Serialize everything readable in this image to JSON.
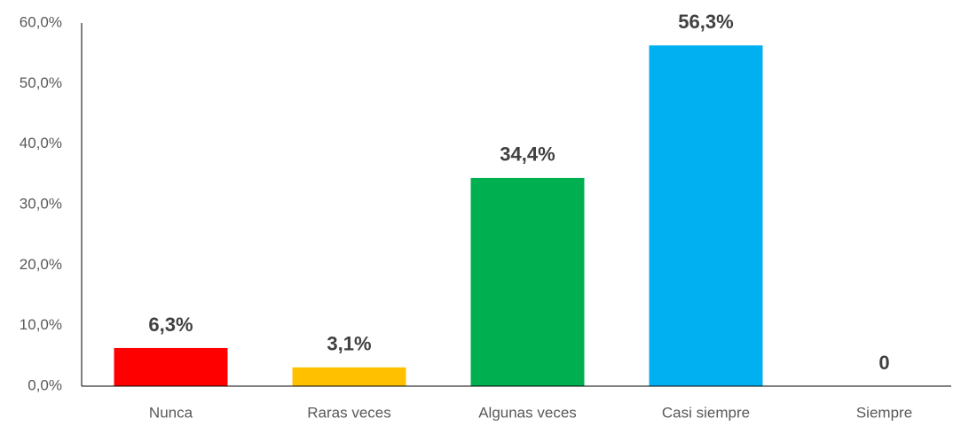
{
  "chart_data": {
    "type": "bar",
    "categories": [
      "Nunca",
      "Raras veces",
      "Algunas veces",
      "Casi siempre",
      "Siempre"
    ],
    "values": [
      6.3,
      3.1,
      34.4,
      56.3,
      0
    ],
    "value_labels": [
      "6,3%",
      "3,1%",
      "34,4%",
      "56,3%",
      "0"
    ],
    "colors": [
      "#ff0000",
      "#ffc000",
      "#00b050",
      "#00b0f0",
      "#a5a5a5"
    ],
    "ylim": [
      0,
      60
    ],
    "yticks": [
      {
        "value": 0,
        "label": "0,0%"
      },
      {
        "value": 10,
        "label": "10,0%"
      },
      {
        "value": 20,
        "label": "20,0%"
      },
      {
        "value": 30,
        "label": "30,0%"
      },
      {
        "value": 40,
        "label": "40,0%"
      },
      {
        "value": 50,
        "label": "50,0%"
      },
      {
        "value": 60,
        "label": "60,0%"
      }
    ],
    "grid": false
  }
}
